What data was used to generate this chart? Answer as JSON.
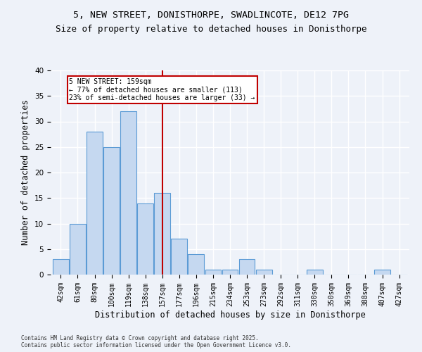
{
  "title1": "5, NEW STREET, DONISTHORPE, SWADLINCOTE, DE12 7PG",
  "title2": "Size of property relative to detached houses in Donisthorpe",
  "xlabel": "Distribution of detached houses by size in Donisthorpe",
  "ylabel": "Number of detached properties",
  "footer": "Contains HM Land Registry data © Crown copyright and database right 2025.\nContains public sector information licensed under the Open Government Licence v3.0.",
  "categories": [
    "42sqm",
    "61sqm",
    "80sqm",
    "100sqm",
    "119sqm",
    "138sqm",
    "157sqm",
    "177sqm",
    "196sqm",
    "215sqm",
    "234sqm",
    "253sqm",
    "273sqm",
    "292sqm",
    "311sqm",
    "330sqm",
    "350sqm",
    "369sqm",
    "388sqm",
    "407sqm",
    "427sqm"
  ],
  "values": [
    3,
    10,
    28,
    25,
    32,
    14,
    16,
    7,
    4,
    1,
    1,
    3,
    1,
    0,
    0,
    1,
    0,
    0,
    0,
    1,
    0
  ],
  "bar_color": "#c5d8f0",
  "bar_edge_color": "#5b9bd5",
  "vline_color": "#c00000",
  "annotation_text": "5 NEW STREET: 159sqm\n← 77% of detached houses are smaller (113)\n23% of semi-detached houses are larger (33) →",
  "annotation_box_color": "#ffffff",
  "annotation_box_edge": "#c00000",
  "background_color": "#eef2f9",
  "grid_color": "#ffffff",
  "ylim": [
    0,
    40
  ],
  "yticks": [
    0,
    5,
    10,
    15,
    20,
    25,
    30,
    35,
    40
  ],
  "title_fontsize": 9.5,
  "title2_fontsize": 9,
  "axis_label_fontsize": 8.5,
  "tick_fontsize": 7,
  "footer_fontsize": 5.5
}
